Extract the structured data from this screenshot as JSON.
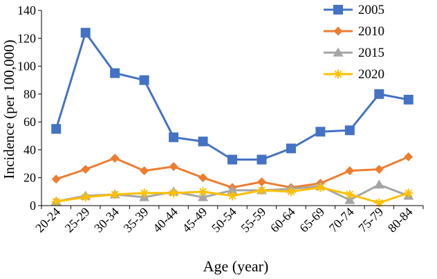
{
  "chart_data": {
    "type": "line",
    "title": "",
    "xlabel": "Age (year)",
    "ylabel": "Incidence (per 100,000)",
    "ylim": [
      0,
      140
    ],
    "yticks": [
      0,
      20,
      40,
      60,
      80,
      100,
      120,
      140
    ],
    "categories": [
      "20-24",
      "25-29",
      "30-34",
      "35-39",
      "40-44",
      "45-49",
      "50-54",
      "55-59",
      "60-64",
      "65-69",
      "70-74",
      "75-79",
      "80-84"
    ],
    "grid": false,
    "legend_position": "top-right",
    "series": [
      {
        "name": "2005",
        "color": "#4472C4",
        "marker": "square",
        "values": [
          55,
          124,
          95,
          90,
          49,
          46,
          33,
          33,
          41,
          53,
          54,
          80,
          76
        ]
      },
      {
        "name": "2010",
        "color": "#ED7D31",
        "marker": "diamond",
        "values": [
          19,
          26,
          34,
          25,
          28,
          20,
          13,
          17,
          13,
          16,
          25,
          26,
          35
        ]
      },
      {
        "name": "2015",
        "color": "#A5A5A5",
        "marker": "triangle",
        "values": [
          3,
          7,
          8,
          6,
          10,
          6,
          11,
          11,
          12,
          14,
          4,
          15,
          7
        ]
      },
      {
        "name": "2020",
        "color": "#FFC000",
        "marker": "star",
        "values": [
          3,
          6,
          8,
          9,
          9,
          10,
          7,
          11,
          10,
          13,
          8,
          2,
          9
        ]
      }
    ]
  }
}
